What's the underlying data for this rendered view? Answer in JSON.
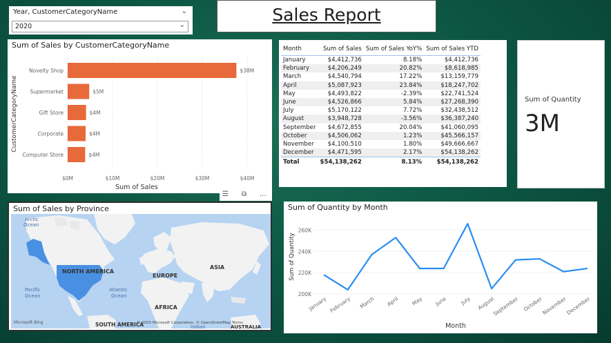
{
  "slicer": {
    "header": "Year, CustomerCategoryName",
    "selected": "2020",
    "icon": "chevron-down-icon"
  },
  "report_title": "Sales Report",
  "bar_chart": {
    "title": "Sum of Sales by CustomerCategoryName",
    "chart_data": {
      "type": "bar",
      "orientation": "horizontal",
      "categories": [
        "Novelty Shop",
        "Supermarket",
        "Gift Store",
        "Corporate",
        "Computer Store"
      ],
      "values": [
        37.6,
        4.8,
        4.1,
        4.0,
        3.9
      ],
      "data_labels": [
        "$38M",
        "$5M",
        "$4M",
        "$4M",
        "$4M"
      ],
      "xlabel": "Sum of Sales",
      "ylabel": "CustomerCategoryName",
      "xticks": [
        "$0M",
        "$10M",
        "$20M",
        "$30M",
        "$40M"
      ],
      "xlim": [
        0,
        40
      ],
      "bar_color": "#e8693a"
    }
  },
  "table": {
    "columns": [
      "Month",
      "Sum of Sales",
      "Sum of Sales YoY%",
      "Sum of Sales YTD"
    ],
    "rows": [
      [
        "January",
        "$4,412,736",
        "8.18%",
        "$4,412,736"
      ],
      [
        "February",
        "$4,206,249",
        "20.82%",
        "$8,618,985"
      ],
      [
        "March",
        "$4,540,794",
        "17.22%",
        "$13,159,779"
      ],
      [
        "April",
        "$5,087,923",
        "23.84%",
        "$18,247,702"
      ],
      [
        "May",
        "$4,493,822",
        "-2.39%",
        "$22,741,524"
      ],
      [
        "June",
        "$4,526,866",
        "5.84%",
        "$27,268,390"
      ],
      [
        "July",
        "$5,170,122",
        "7.72%",
        "$32,438,512"
      ],
      [
        "August",
        "$3,948,728",
        "-3.56%",
        "$36,387,240"
      ],
      [
        "September",
        "$4,672,855",
        "20.04%",
        "$41,060,095"
      ],
      [
        "October",
        "$4,506,062",
        "1.23%",
        "$45,566,157"
      ],
      [
        "November",
        "$4,100,510",
        "1.80%",
        "$49,666,667"
      ],
      [
        "December",
        "$4,471,595",
        "2.17%",
        "$54,138,262"
      ]
    ],
    "total": [
      "Total",
      "$54,138,262",
      "8.13%",
      "$54,138,262"
    ]
  },
  "card": {
    "label": "Sum of Quantity",
    "value": "3M"
  },
  "map": {
    "title": "Sum of Sales by Province",
    "labels": {
      "arctic": "Arctic\nOcean",
      "north_america": "NORTH AMERICA",
      "europe": "EUROPE",
      "asia": "ASIA",
      "africa": "AFRICA",
      "atlantic": "Atlantic\nOcean",
      "pacific": "Pacific\nOcean",
      "south_america": "SOUTH AMERICA",
      "indian": "Indian",
      "australia": "AUSTRALIA"
    },
    "attribution": "© 2025 Microsoft Corporation, © OpenStreetMap  Terms",
    "logo": "Microsoft Bing",
    "highlight_color": "#4a90e2"
  },
  "line_chart": {
    "title": "Sum of Quantity by Month",
    "chart_data": {
      "type": "line",
      "x": [
        "January",
        "February",
        "March",
        "April",
        "May",
        "June",
        "July",
        "August",
        "September",
        "October",
        "November",
        "December"
      ],
      "values": [
        218000,
        204000,
        237000,
        253000,
        224000,
        224000,
        266000,
        205000,
        232000,
        233000,
        221000,
        224000
      ],
      "xlabel": "Month",
      "ylabel": "Sum of Quantity",
      "yticks": [
        "200K",
        "220K",
        "240K",
        "260K"
      ],
      "ylim": [
        200000,
        270000
      ],
      "line_color": "#2a8cf0"
    }
  },
  "toolbar": {
    "filter_icon": "filter-icon",
    "focus_icon": "focus-mode-icon",
    "more_icon": "more-options-icon",
    "more_label": "..."
  }
}
